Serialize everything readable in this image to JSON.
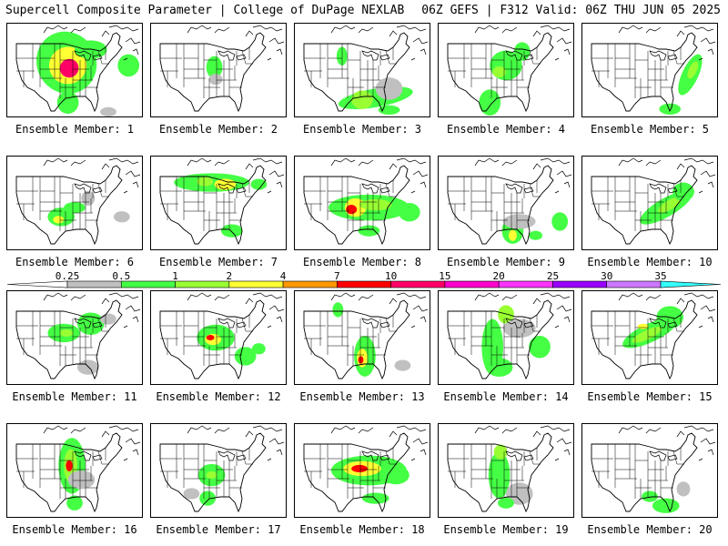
{
  "header": {
    "title_left": "Supercell Composite Parameter | College of DuPage NEXLAB",
    "title_right": "06Z GEFS | F312 Valid: 06Z THU JUN 05 2025"
  },
  "member_prefix": "Ensemble Member: ",
  "members": [
    {
      "label": "Ensemble Member: 1",
      "blobs": [
        [
          0.44,
          0.42,
          0.22,
          0.34,
          -30,
          1
        ],
        [
          0.45,
          0.45,
          0.14,
          0.2,
          -30,
          3
        ],
        [
          0.46,
          0.48,
          0.07,
          0.1,
          -30,
          6
        ],
        [
          0.62,
          0.28,
          0.12,
          0.1,
          0,
          1
        ],
        [
          0.9,
          0.45,
          0.08,
          0.12,
          0,
          1
        ],
        [
          0.45,
          0.85,
          0.08,
          0.12,
          0,
          1
        ],
        [
          0.75,
          0.95,
          0.06,
          0.05,
          0,
          0
        ]
      ]
    },
    {
      "label": "Ensemble Member: 2",
      "blobs": [
        [
          0.47,
          0.47,
          0.06,
          0.12,
          0,
          1
        ],
        [
          0.48,
          0.6,
          0.05,
          0.06,
          0,
          0
        ]
      ]
    },
    {
      "label": "Ensemble Member: 3",
      "blobs": [
        [
          0.6,
          0.8,
          0.28,
          0.1,
          -10,
          1
        ],
        [
          0.5,
          0.82,
          0.08,
          0.1,
          0,
          2
        ],
        [
          0.7,
          0.7,
          0.1,
          0.12,
          0,
          0
        ],
        [
          0.35,
          0.35,
          0.04,
          0.1,
          0,
          1
        ],
        [
          0.7,
          0.93,
          0.08,
          0.05,
          0,
          1
        ]
      ]
    },
    {
      "label": "Ensemble Member: 4",
      "blobs": [
        [
          0.5,
          0.45,
          0.12,
          0.16,
          0,
          1
        ],
        [
          0.45,
          0.52,
          0.05,
          0.06,
          0,
          2
        ],
        [
          0.62,
          0.3,
          0.06,
          0.1,
          0,
          1
        ],
        [
          0.38,
          0.85,
          0.08,
          0.14,
          0,
          1
        ]
      ]
    },
    {
      "label": "Ensemble Member: 5",
      "blobs": [
        [
          0.8,
          0.55,
          0.06,
          0.24,
          25,
          1
        ],
        [
          0.82,
          0.5,
          0.03,
          0.1,
          25,
          2
        ],
        [
          0.65,
          0.92,
          0.08,
          0.06,
          0,
          1
        ]
      ]
    },
    {
      "label": "Ensemble Member: 6",
      "blobs": [
        [
          0.4,
          0.65,
          0.1,
          0.1,
          0,
          1
        ],
        [
          0.38,
          0.68,
          0.04,
          0.04,
          0,
          3
        ],
        [
          0.5,
          0.55,
          0.08,
          0.06,
          0,
          1
        ],
        [
          0.6,
          0.45,
          0.05,
          0.08,
          0,
          0
        ],
        [
          0.85,
          0.65,
          0.06,
          0.06,
          0,
          0
        ]
      ]
    },
    {
      "label": "Ensemble Member: 7",
      "blobs": [
        [
          0.45,
          0.28,
          0.28,
          0.1,
          0,
          1
        ],
        [
          0.55,
          0.3,
          0.08,
          0.06,
          0,
          3
        ],
        [
          0.4,
          0.27,
          0.06,
          0.05,
          0,
          2
        ],
        [
          0.6,
          0.8,
          0.08,
          0.07,
          0,
          1
        ],
        [
          0.8,
          0.3,
          0.06,
          0.06,
          0,
          1
        ]
      ]
    },
    {
      "label": "Ensemble Member: 8",
      "blobs": [
        [
          0.55,
          0.55,
          0.3,
          0.14,
          0,
          1
        ],
        [
          0.45,
          0.55,
          0.08,
          0.1,
          0,
          3
        ],
        [
          0.42,
          0.57,
          0.04,
          0.05,
          0,
          5
        ],
        [
          0.6,
          0.52,
          0.12,
          0.06,
          0,
          2
        ],
        [
          0.85,
          0.6,
          0.08,
          0.1,
          0,
          1
        ],
        [
          0.55,
          0.8,
          0.08,
          0.06,
          0,
          1
        ]
      ]
    },
    {
      "label": "Ensemble Member: 9",
      "blobs": [
        [
          0.55,
          0.8,
          0.08,
          0.14,
          0,
          1
        ],
        [
          0.55,
          0.85,
          0.03,
          0.06,
          0,
          3
        ],
        [
          0.6,
          0.7,
          0.12,
          0.08,
          0,
          0
        ],
        [
          0.9,
          0.7,
          0.06,
          0.1,
          0,
          1
        ],
        [
          0.72,
          0.85,
          0.05,
          0.05,
          0,
          1
        ]
      ]
    },
    {
      "label": "Ensemble Member: 10",
      "blobs": [
        [
          0.62,
          0.55,
          0.22,
          0.1,
          -30,
          1
        ],
        [
          0.65,
          0.52,
          0.1,
          0.05,
          -30,
          2
        ],
        [
          0.75,
          0.38,
          0.08,
          0.1,
          0,
          1
        ]
      ]
    },
    {
      "label": "Ensemble Member: 11",
      "blobs": [
        [
          0.42,
          0.45,
          0.12,
          0.1,
          0,
          1
        ],
        [
          0.44,
          0.45,
          0.05,
          0.04,
          0,
          2
        ],
        [
          0.62,
          0.35,
          0.1,
          0.12,
          0,
          1
        ],
        [
          0.75,
          0.3,
          0.06,
          0.06,
          0,
          0
        ],
        [
          0.6,
          0.82,
          0.08,
          0.08,
          0,
          0
        ]
      ]
    },
    {
      "label": "Ensemble Member: 12",
      "blobs": [
        [
          0.48,
          0.5,
          0.14,
          0.14,
          0,
          1
        ],
        [
          0.46,
          0.52,
          0.06,
          0.06,
          0,
          3
        ],
        [
          0.44,
          0.5,
          0.03,
          0.03,
          0,
          5
        ],
        [
          0.7,
          0.7,
          0.08,
          0.1,
          0,
          1
        ],
        [
          0.8,
          0.62,
          0.05,
          0.06,
          0,
          1
        ]
      ]
    },
    {
      "label": "Ensemble Member: 13",
      "blobs": [
        [
          0.52,
          0.7,
          0.08,
          0.22,
          0,
          1
        ],
        [
          0.5,
          0.72,
          0.04,
          0.1,
          0,
          3
        ],
        [
          0.49,
          0.74,
          0.02,
          0.04,
          0,
          5
        ],
        [
          0.32,
          0.2,
          0.04,
          0.08,
          0,
          1
        ],
        [
          0.8,
          0.8,
          0.06,
          0.06,
          0,
          0
        ]
      ]
    },
    {
      "label": "Ensemble Member: 14",
      "blobs": [
        [
          0.4,
          0.6,
          0.08,
          0.3,
          0,
          1
        ],
        [
          0.45,
          0.82,
          0.1,
          0.1,
          0,
          1
        ],
        [
          0.5,
          0.25,
          0.06,
          0.1,
          0,
          2
        ],
        [
          0.6,
          0.4,
          0.12,
          0.1,
          0,
          0
        ],
        [
          0.75,
          0.6,
          0.08,
          0.12,
          0,
          1
        ]
      ]
    },
    {
      "label": "Ensemble Member: 15",
      "blobs": [
        [
          0.5,
          0.45,
          0.22,
          0.1,
          -25,
          1
        ],
        [
          0.48,
          0.47,
          0.12,
          0.05,
          -25,
          2
        ],
        [
          0.65,
          0.28,
          0.1,
          0.12,
          0,
          1
        ],
        [
          0.45,
          0.38,
          0.04,
          0.03,
          0,
          3
        ]
      ]
    },
    {
      "label": "Ensemble Member: 16",
      "blobs": [
        [
          0.48,
          0.45,
          0.1,
          0.3,
          0,
          1
        ],
        [
          0.47,
          0.45,
          0.05,
          0.18,
          0,
          2
        ],
        [
          0.46,
          0.45,
          0.025,
          0.06,
          0,
          5
        ],
        [
          0.5,
          0.85,
          0.06,
          0.08,
          0,
          1
        ],
        [
          0.55,
          0.6,
          0.1,
          0.1,
          0,
          0
        ]
      ]
    },
    {
      "label": "Ensemble Member: 17",
      "blobs": [
        [
          0.45,
          0.55,
          0.1,
          0.12,
          0,
          1
        ],
        [
          0.45,
          0.55,
          0.04,
          0.04,
          0,
          2
        ],
        [
          0.42,
          0.8,
          0.06,
          0.08,
          0,
          1
        ],
        [
          0.3,
          0.75,
          0.06,
          0.06,
          0,
          0
        ]
      ]
    },
    {
      "label": "Ensemble Member: 18",
      "blobs": [
        [
          0.55,
          0.5,
          0.28,
          0.16,
          0,
          1
        ],
        [
          0.5,
          0.48,
          0.14,
          0.08,
          0,
          3
        ],
        [
          0.48,
          0.48,
          0.06,
          0.04,
          0,
          5
        ],
        [
          0.75,
          0.55,
          0.1,
          0.1,
          0,
          1
        ],
        [
          0.6,
          0.8,
          0.1,
          0.06,
          0,
          1
        ]
      ]
    },
    {
      "label": "Ensemble Member: 19",
      "blobs": [
        [
          0.45,
          0.55,
          0.08,
          0.25,
          0,
          1
        ],
        [
          0.46,
          0.3,
          0.05,
          0.08,
          0,
          2
        ],
        [
          0.6,
          0.75,
          0.1,
          0.12,
          0,
          0
        ],
        [
          0.5,
          0.85,
          0.06,
          0.06,
          0,
          1
        ]
      ]
    },
    {
      "label": "Ensemble Member: 20",
      "blobs": [
        [
          0.62,
          0.88,
          0.1,
          0.08,
          0,
          1
        ],
        [
          0.5,
          0.78,
          0.06,
          0.06,
          0,
          1
        ],
        [
          0.75,
          0.7,
          0.05,
          0.08,
          0,
          0
        ]
      ]
    }
  ],
  "colorbar": {
    "labels": [
      "0.25",
      "0.5",
      "1",
      "2",
      "4",
      "7",
      "10",
      "15",
      "20",
      "25",
      "30",
      "35"
    ],
    "colors": [
      "#c0c0c0",
      "#44ff44",
      "#99ff33",
      "#ffff33",
      "#ff9900",
      "#ff0000",
      "#ff0066",
      "#ff00cc",
      "#ff33ff",
      "#9900ff",
      "#cc77ff",
      "#33ffff"
    ]
  },
  "field_colors": [
    "#c0c0c0",
    "#44ff44",
    "#99ff33",
    "#ffff33",
    "#ff9900",
    "#ff0000",
    "#ff0066"
  ]
}
